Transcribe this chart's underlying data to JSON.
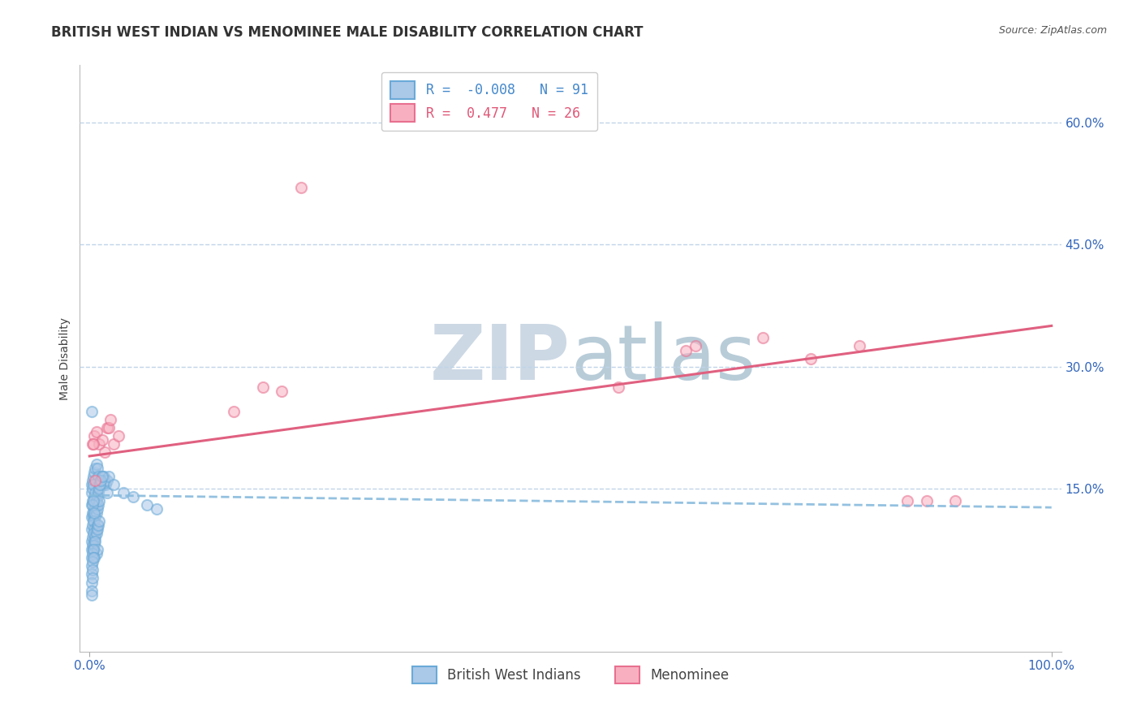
{
  "title": "BRITISH WEST INDIAN VS MENOMINEE MALE DISABILITY CORRELATION CHART",
  "source": "Source: ZipAtlas.com",
  "ylabel": "Male Disability",
  "xlim": [
    -0.01,
    1.01
  ],
  "ylim": [
    -0.05,
    0.67
  ],
  "xticks": [
    0.0,
    1.0
  ],
  "xticklabels": [
    "0.0%",
    "100.0%"
  ],
  "yticks": [
    0.15,
    0.3,
    0.45,
    0.6
  ],
  "yticklabels": [
    "15.0%",
    "30.0%",
    "45.0%",
    "60.0%"
  ],
  "blue_R": -0.008,
  "blue_N": 91,
  "pink_R": 0.477,
  "pink_N": 26,
  "blue_dot_fill": "#aac8e8",
  "blue_dot_edge": "#6aaad8",
  "pink_dot_fill": "#f8b0c0",
  "pink_dot_edge": "#e87090",
  "blue_line_color": "#88bbdd",
  "pink_line_color": "#e06080",
  "grid_color": "#c0d4e8",
  "watermark_color": "#ccd8e4",
  "legend_color_blue": "#4488cc",
  "legend_color_pink": "#e05878",
  "blue_x": [
    0.002,
    0.003,
    0.004,
    0.005,
    0.006,
    0.007,
    0.008,
    0.009,
    0.01,
    0.011,
    0.012,
    0.013,
    0.014,
    0.015,
    0.016,
    0.017,
    0.018,
    0.02,
    0.002,
    0.003,
    0.004,
    0.005,
    0.006,
    0.007,
    0.008,
    0.009,
    0.01,
    0.011,
    0.012,
    0.013,
    0.002,
    0.003,
    0.004,
    0.005,
    0.006,
    0.007,
    0.002,
    0.003,
    0.004,
    0.005,
    0.006,
    0.007,
    0.008,
    0.009,
    0.01,
    0.002,
    0.003,
    0.004,
    0.005,
    0.006,
    0.007,
    0.008,
    0.002,
    0.003,
    0.004,
    0.005,
    0.006,
    0.007,
    0.008,
    0.009,
    0.01,
    0.002,
    0.003,
    0.004,
    0.005,
    0.006,
    0.007,
    0.008,
    0.002,
    0.003,
    0.004,
    0.005,
    0.002,
    0.003,
    0.004,
    0.002,
    0.003,
    0.002,
    0.003,
    0.002,
    0.002,
    0.018,
    0.025,
    0.035,
    0.045,
    0.06,
    0.07,
    0.002,
    0.003,
    0.004,
    0.005
  ],
  "blue_y": [
    0.155,
    0.16,
    0.165,
    0.17,
    0.175,
    0.18,
    0.175,
    0.165,
    0.155,
    0.155,
    0.16,
    0.165,
    0.155,
    0.165,
    0.16,
    0.155,
    0.16,
    0.165,
    0.145,
    0.15,
    0.155,
    0.14,
    0.145,
    0.13,
    0.14,
    0.145,
    0.15,
    0.155,
    0.16,
    0.165,
    0.13,
    0.135,
    0.12,
    0.125,
    0.13,
    0.135,
    0.115,
    0.12,
    0.115,
    0.11,
    0.115,
    0.12,
    0.125,
    0.13,
    0.135,
    0.1,
    0.105,
    0.11,
    0.1,
    0.095,
    0.1,
    0.105,
    0.085,
    0.09,
    0.095,
    0.085,
    0.09,
    0.095,
    0.1,
    0.105,
    0.11,
    0.075,
    0.08,
    0.075,
    0.08,
    0.085,
    0.07,
    0.075,
    0.065,
    0.07,
    0.075,
    0.065,
    0.055,
    0.06,
    0.065,
    0.045,
    0.05,
    0.035,
    0.04,
    0.025,
    0.02,
    0.145,
    0.155,
    0.145,
    0.14,
    0.13,
    0.125,
    0.245,
    0.13,
    0.135,
    0.12
  ],
  "pink_x": [
    0.005,
    0.007,
    0.01,
    0.013,
    0.016,
    0.018,
    0.02,
    0.022,
    0.025,
    0.03,
    0.15,
    0.18,
    0.2,
    0.22,
    0.55,
    0.62,
    0.63,
    0.7,
    0.75,
    0.8,
    0.85,
    0.87,
    0.9,
    0.003,
    0.004,
    0.006
  ],
  "pink_y": [
    0.215,
    0.22,
    0.205,
    0.21,
    0.195,
    0.225,
    0.225,
    0.235,
    0.205,
    0.215,
    0.245,
    0.275,
    0.27,
    0.52,
    0.275,
    0.32,
    0.325,
    0.335,
    0.31,
    0.325,
    0.135,
    0.135,
    0.135,
    0.205,
    0.205,
    0.16
  ],
  "blue_line_y_start": 0.142,
  "blue_line_y_end": 0.127,
  "pink_line_y_start": 0.19,
  "pink_line_y_end": 0.35,
  "background_color": "#ffffff",
  "title_fontsize": 12,
  "axis_label_fontsize": 10,
  "tick_fontsize": 11,
  "legend_fontsize": 12,
  "marker_size": 90,
  "marker_alpha": 0.55,
  "marker_linewidth": 1.5
}
